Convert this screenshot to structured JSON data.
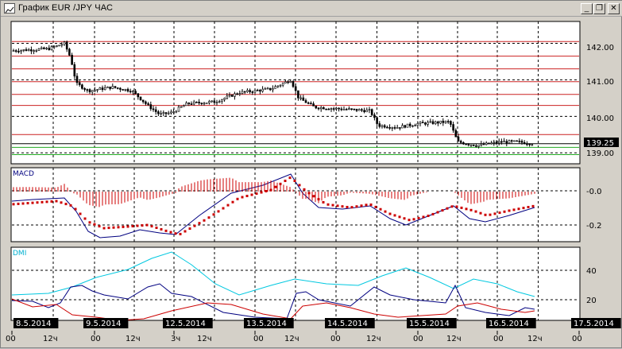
{
  "window": {
    "title": "График EUR /JPY ЧАС",
    "icon": "chart-window-icon",
    "minimize_label": "_",
    "restore_label": "❐",
    "close_label": "✕"
  },
  "price_panel": {
    "axis_labels": [
      "142.00",
      "141.00",
      "140.00",
      "139.00"
    ],
    "current_price": "139.25",
    "resistance_levels": [
      142.05,
      141.65,
      141.3,
      140.95,
      140.6,
      140.3,
      139.5
    ],
    "support_levels": [
      139.15,
      138.95
    ],
    "colors": {
      "candle": "#000000",
      "level_red": "#cc2222",
      "level_green": "#22aa22",
      "current_bg": "#000000"
    }
  },
  "macd_panel": {
    "title": "MACD",
    "axis_labels": [
      "-0.0",
      "-0.2"
    ],
    "colors": {
      "line": "#000080",
      "signal": "#cc0000",
      "histogram": "#cc0000"
    }
  },
  "dmi_panel": {
    "title": "DMI",
    "axis_labels": [
      "40",
      "20"
    ],
    "colors": {
      "adx": "#00c8e0",
      "plus_di": "#000080",
      "minus_di": "#cc0000"
    }
  },
  "date_labels": [
    "8.5.2014",
    "9.5.2014",
    "12.5.2014",
    "13.5.2014",
    "14.5.2014",
    "15.5.2014",
    "16.5.2014",
    "17.5.2014"
  ],
  "hour_labels": [
    "00",
    "12ч",
    "00",
    "12ч",
    "3ч",
    "12ч",
    "00",
    "12ч",
    "00",
    "12ч",
    "00",
    "12ч",
    "00",
    "12ч",
    "00"
  ],
  "chart_data": {
    "type": "line",
    "instrument": "EUR/JPY",
    "timeframe": "ЧАС",
    "x": [
      "8.5.2014",
      "9.5.2014",
      "12.5.2014",
      "13.5.2014",
      "14.5.2014",
      "15.5.2014",
      "16.5.2014"
    ],
    "series": [
      {
        "name": "EUR/JPY",
        "values": [
          141.8,
          140.7,
          140.2,
          140.8,
          140.1,
          139.7,
          139.2
        ]
      }
    ],
    "price_axis_ticks": [
      142.0,
      141.0,
      140.0,
      139.0
    ],
    "price_range": [
      138.7,
      142.6
    ],
    "last_price": 139.25,
    "macd_axis_ticks": [
      0.0,
      -0.2
    ],
    "dmi_axis_ticks": [
      40,
      20
    ],
    "grid": true
  }
}
